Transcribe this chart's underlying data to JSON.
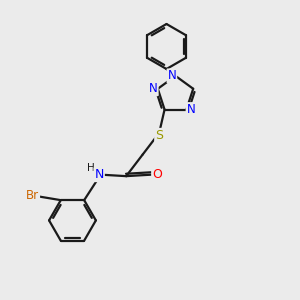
{
  "bg_color": "#ebebeb",
  "bond_color": "#1a1a1a",
  "N_color": "#0000ff",
  "S_color": "#999900",
  "O_color": "#ff0000",
  "Br_color": "#cc6600",
  "line_width": 1.6,
  "figsize": [
    3.0,
    3.0
  ],
  "dpi": 100,
  "xlim": [
    0,
    10
  ],
  "ylim": [
    0,
    10
  ]
}
